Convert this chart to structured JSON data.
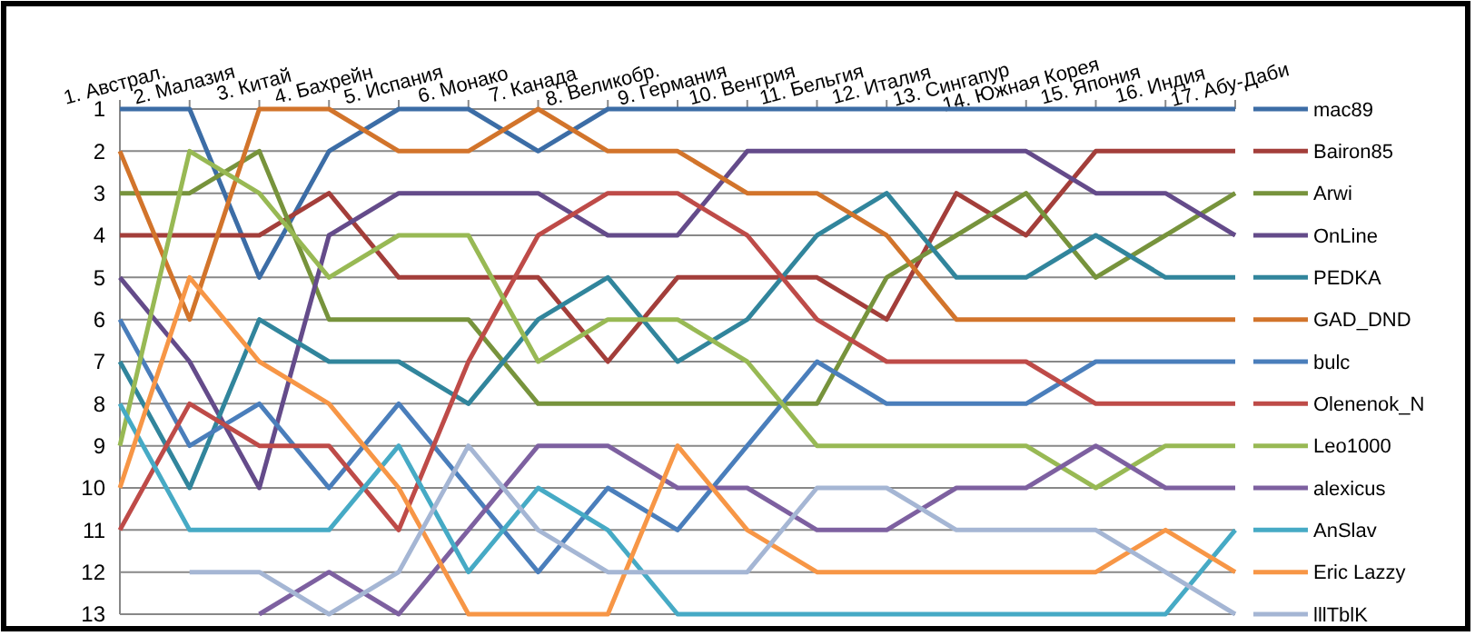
{
  "chart_data": {
    "type": "line",
    "categories": [
      "1. Австрал.",
      "2. Малазия",
      "3. Китай",
      "4. Бахрейн",
      "5. Испания",
      "6. Монако",
      "7. Канада",
      "8. Великобр.",
      "9. Германия",
      "10. Венгрия",
      "11. Бельгия",
      "12. Италия",
      "13. Сингапур",
      "14. Южная Корея",
      "15. Япония",
      "16. Индия",
      "17. Абу-Даби"
    ],
    "ylim": [
      13,
      1
    ],
    "yticks": [
      1,
      2,
      3,
      4,
      5,
      6,
      7,
      8,
      9,
      10,
      11,
      12,
      13
    ],
    "grid": "y",
    "legend": "right",
    "marker": "none",
    "series": [
      {
        "name": "mac89",
        "color": "#3c6da6",
        "values": [
          1,
          1,
          5,
          2,
          1,
          1,
          2,
          1,
          1,
          1,
          1,
          1,
          1,
          1,
          1,
          1,
          1
        ]
      },
      {
        "name": "Bairon85",
        "color": "#a33e3a",
        "values": [
          4,
          4,
          4,
          3,
          5,
          5,
          5,
          7,
          5,
          5,
          5,
          6,
          3,
          4,
          2,
          2,
          2
        ]
      },
      {
        "name": "Arwi",
        "color": "#77933c",
        "values": [
          3,
          3,
          2,
          6,
          6,
          6,
          8,
          8,
          8,
          8,
          8,
          5,
          4,
          3,
          5,
          4,
          3
        ]
      },
      {
        "name": "OnLine",
        "color": "#644b8a",
        "values": [
          5,
          7,
          10,
          4,
          3,
          3,
          3,
          4,
          4,
          2,
          2,
          2,
          2,
          2,
          3,
          3,
          4
        ]
      },
      {
        "name": "PEDKA",
        "color": "#31859c",
        "values": [
          7,
          10,
          6,
          7,
          7,
          8,
          6,
          5,
          7,
          6,
          4,
          3,
          5,
          5,
          4,
          5,
          5
        ]
      },
      {
        "name": "GAD_DND",
        "color": "#d2742b",
        "values": [
          2,
          6,
          1,
          1,
          2,
          2,
          1,
          2,
          2,
          3,
          3,
          4,
          6,
          6,
          6,
          6,
          6
        ]
      },
      {
        "name": "bulc",
        "color": "#4a7ebb",
        "values": [
          6,
          9,
          8,
          10,
          8,
          10,
          12,
          10,
          11,
          9,
          7,
          8,
          8,
          8,
          7,
          7,
          7
        ]
      },
      {
        "name": "Olenenok_N",
        "color": "#be4b48",
        "values": [
          11,
          8,
          9,
          9,
          11,
          7,
          4,
          3,
          3,
          4,
          6,
          7,
          7,
          7,
          8,
          8,
          8
        ]
      },
      {
        "name": "Leo1000",
        "color": "#98b954",
        "values": [
          9,
          2,
          3,
          5,
          4,
          4,
          7,
          6,
          6,
          7,
          9,
          9,
          9,
          9,
          10,
          9,
          9
        ]
      },
      {
        "name": "alexicus",
        "color": "#7d60a0",
        "values": [
          null,
          null,
          13,
          12,
          13,
          11,
          9,
          9,
          10,
          10,
          11,
          11,
          10,
          10,
          9,
          10,
          10
        ]
      },
      {
        "name": "AnSlav",
        "color": "#46aac5",
        "values": [
          8,
          11,
          11,
          11,
          9,
          12,
          10,
          11,
          13,
          13,
          13,
          13,
          13,
          13,
          13,
          13,
          11
        ]
      },
      {
        "name": "Eric Lazzy",
        "color": "#f79646",
        "values": [
          10,
          5,
          7,
          8,
          10,
          13,
          13,
          13,
          9,
          11,
          12,
          12,
          12,
          12,
          12,
          11,
          12
        ]
      },
      {
        "name": "lllTblK",
        "color": "#a5b6d4",
        "values": [
          null,
          12,
          12,
          13,
          12,
          9,
          11,
          12,
          12,
          12,
          10,
          10,
          11,
          11,
          11,
          12,
          13
        ]
      }
    ]
  }
}
